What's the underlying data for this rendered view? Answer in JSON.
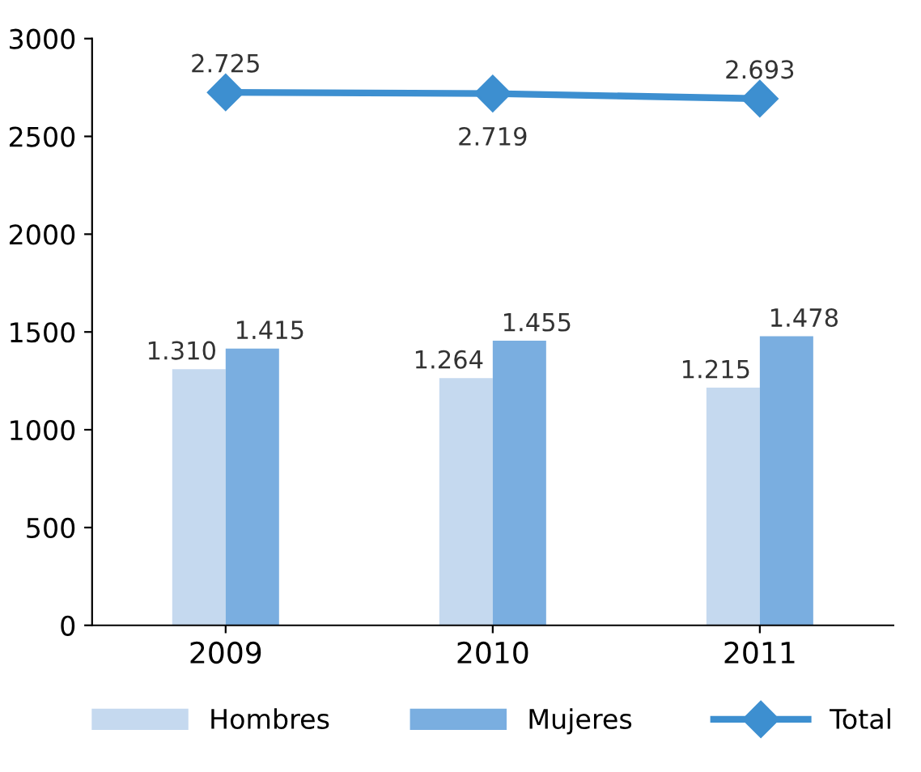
{
  "chart_data": {
    "type": "bar",
    "categories": [
      "2009",
      "2010",
      "2011"
    ],
    "series": [
      {
        "name": "Hombres",
        "color": "#c5d9ef",
        "values": [
          1310,
          1264,
          1215
        ],
        "value_labels": [
          "1.310",
          "1.264",
          "1.215"
        ]
      },
      {
        "name": "Mujeres",
        "color": "#7aaee0",
        "values": [
          1415,
          1455,
          1478
        ],
        "value_labels": [
          "1.415",
          "1.455",
          "1.478"
        ]
      },
      {
        "name": "Total",
        "type": "line",
        "color": "#3d8fd0",
        "marker": "diamond",
        "values": [
          2725,
          2719,
          2693
        ],
        "value_labels": [
          "2.725",
          "2.719",
          "2.693"
        ]
      }
    ],
    "ylim": [
      0,
      3000
    ],
    "yticks": [
      0,
      500,
      1000,
      1500,
      2000,
      2500,
      3000
    ],
    "grid": false,
    "legend": "bottom"
  }
}
